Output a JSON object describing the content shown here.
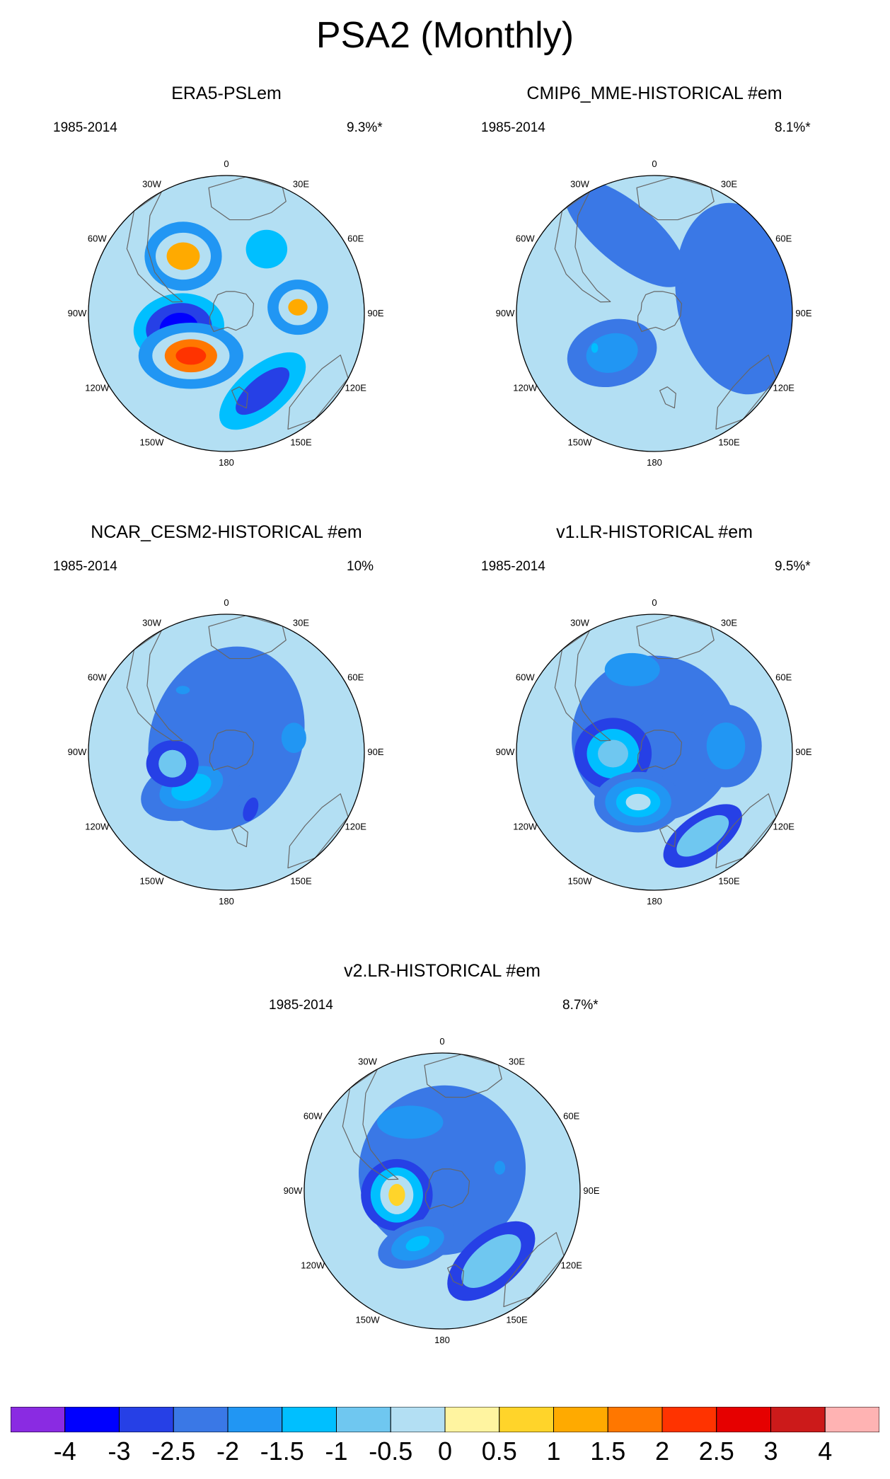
{
  "title": "PSA2 (Monthly)",
  "panels": [
    {
      "title": "ERA5-PSLem",
      "period": "1985-2014",
      "variance": "9.3%*",
      "blobs": [
        {
          "bearing": 323,
          "dist": 0.52,
          "a": 0.28,
          "b": 0.25,
          "rot": 0,
          "lvl": 3
        },
        {
          "bearing": 323,
          "dist": 0.52,
          "a": 0.2,
          "b": 0.17,
          "rot": 0,
          "lvl": 6
        },
        {
          "bearing": 323,
          "dist": 0.52,
          "a": 0.12,
          "b": 0.1,
          "rot": 0,
          "lvl": 8
        },
        {
          "bearing": 85,
          "dist": 0.52,
          "a": 0.22,
          "b": 0.2,
          "rot": 0,
          "lvl": 3
        },
        {
          "bearing": 85,
          "dist": 0.52,
          "a": 0.14,
          "b": 0.13,
          "rot": 0,
          "lvl": 6
        },
        {
          "bearing": 85,
          "dist": 0.52,
          "a": 0.07,
          "b": 0.06,
          "rot": 0,
          "lvl": 8
        },
        {
          "bearing": 253,
          "dist": 0.36,
          "a": 0.33,
          "b": 0.25,
          "rot": -8,
          "lvl": 4
        },
        {
          "bearing": 253,
          "dist": 0.36,
          "a": 0.24,
          "b": 0.18,
          "rot": -8,
          "lvl": 1
        },
        {
          "bearing": 253,
          "dist": 0.36,
          "a": 0.14,
          "b": 0.11,
          "rot": -8,
          "lvl": 0
        },
        {
          "bearing": 220,
          "dist": 0.4,
          "a": 0.38,
          "b": 0.24,
          "rot": 0,
          "lvl": 3
        },
        {
          "bearing": 220,
          "dist": 0.4,
          "a": 0.28,
          "b": 0.17,
          "rot": 0,
          "lvl": 6
        },
        {
          "bearing": 220,
          "dist": 0.4,
          "a": 0.19,
          "b": 0.12,
          "rot": 0,
          "lvl": 9
        },
        {
          "bearing": 220,
          "dist": 0.4,
          "a": 0.11,
          "b": 0.065,
          "rot": 0,
          "lvl": 10
        },
        {
          "bearing": 155,
          "dist": 0.62,
          "a": 0.38,
          "b": 0.18,
          "rot": -40,
          "lvl": 4
        },
        {
          "bearing": 155,
          "dist": 0.62,
          "a": 0.24,
          "b": 0.1,
          "rot": -40,
          "lvl": 1
        },
        {
          "bearing": 32,
          "dist": 0.55,
          "a": 0.15,
          "b": 0.14,
          "rot": 0,
          "lvl": 4
        }
      ]
    },
    {
      "title": "CMIP6_MME-HISTORICAL  #em",
      "period": "1985-2014",
      "variance": "8.1%*",
      "blobs": [
        {
          "bearing": 80,
          "dist": 0.62,
          "a": 0.45,
          "b": 0.7,
          "rot": -10,
          "lvl": 2
        },
        {
          "bearing": 340,
          "dist": 0.62,
          "a": 0.55,
          "b": 0.22,
          "rot": 40,
          "lvl": 2
        },
        {
          "bearing": 227,
          "dist": 0.42,
          "a": 0.33,
          "b": 0.24,
          "rot": -15,
          "lvl": 2
        },
        {
          "bearing": 227,
          "dist": 0.42,
          "a": 0.19,
          "b": 0.14,
          "rot": -15,
          "lvl": 3
        },
        {
          "bearing": 240,
          "dist": 0.5,
          "a": 0.025,
          "b": 0.035,
          "rot": 0,
          "lvl": 4
        }
      ]
    },
    {
      "title": "NCAR_CESM2-HISTORICAL  #em",
      "period": "1985-2014",
      "variance": "10%",
      "blobs": [
        {
          "bearing": 0,
          "dist": 0.1,
          "a": 0.55,
          "b": 0.68,
          "rot": 20,
          "lvl": 2
        },
        {
          "bearing": 225,
          "dist": 0.36,
          "a": 0.38,
          "b": 0.22,
          "rot": -20,
          "lvl": 2
        },
        {
          "bearing": 225,
          "dist": 0.36,
          "a": 0.24,
          "b": 0.14,
          "rot": -20,
          "lvl": 3
        },
        {
          "bearing": 225,
          "dist": 0.36,
          "a": 0.15,
          "b": 0.09,
          "rot": -20,
          "lvl": 4
        },
        {
          "bearing": 258,
          "dist": 0.4,
          "a": 0.19,
          "b": 0.17,
          "rot": 0,
          "lvl": 1
        },
        {
          "bearing": 258,
          "dist": 0.4,
          "a": 0.1,
          "b": 0.1,
          "rot": 0,
          "lvl": 5
        },
        {
          "bearing": 78,
          "dist": 0.5,
          "a": 0.09,
          "b": 0.11,
          "rot": 0,
          "lvl": 3
        },
        {
          "bearing": 157,
          "dist": 0.45,
          "a": 0.05,
          "b": 0.09,
          "rot": 20,
          "lvl": 1
        },
        {
          "bearing": 325,
          "dist": 0.55,
          "a": 0.05,
          "b": 0.03,
          "rot": 0,
          "lvl": 3
        }
      ]
    },
    {
      "title": "v1.LR-HISTORICAL  #em",
      "period": "1985-2014",
      "variance": "9.5%*",
      "blobs": [
        {
          "bearing": 0,
          "dist": 0.1,
          "a": 0.6,
          "b": 0.6,
          "rot": 30,
          "lvl": 2
        },
        {
          "bearing": 85,
          "dist": 0.52,
          "a": 0.26,
          "b": 0.3,
          "rot": 0,
          "lvl": 2
        },
        {
          "bearing": 85,
          "dist": 0.52,
          "a": 0.14,
          "b": 0.17,
          "rot": 0,
          "lvl": 3
        },
        {
          "bearing": 345,
          "dist": 0.62,
          "a": 0.2,
          "b": 0.12,
          "rot": 0,
          "lvl": 3
        },
        {
          "bearing": 268,
          "dist": 0.3,
          "a": 0.28,
          "b": 0.26,
          "rot": 0,
          "lvl": 1
        },
        {
          "bearing": 268,
          "dist": 0.3,
          "a": 0.19,
          "b": 0.18,
          "rot": 0,
          "lvl": 4
        },
        {
          "bearing": 268,
          "dist": 0.3,
          "a": 0.11,
          "b": 0.1,
          "rot": 0,
          "lvl": 5
        },
        {
          "bearing": 198,
          "dist": 0.38,
          "a": 0.32,
          "b": 0.22,
          "rot": 0,
          "lvl": 2
        },
        {
          "bearing": 198,
          "dist": 0.38,
          "a": 0.24,
          "b": 0.17,
          "rot": 0,
          "lvl": 3
        },
        {
          "bearing": 198,
          "dist": 0.38,
          "a": 0.16,
          "b": 0.11,
          "rot": 0,
          "lvl": 4
        },
        {
          "bearing": 198,
          "dist": 0.38,
          "a": 0.09,
          "b": 0.06,
          "rot": 0,
          "lvl": 6
        },
        {
          "bearing": 150,
          "dist": 0.7,
          "a": 0.33,
          "b": 0.16,
          "rot": -35,
          "lvl": 1
        },
        {
          "bearing": 150,
          "dist": 0.7,
          "a": 0.22,
          "b": 0.1,
          "rot": -35,
          "lvl": 5
        }
      ]
    },
    {
      "title": "v2.LR-HISTORICAL  #em",
      "period": "1985-2014",
      "variance": "8.7%*",
      "blobs": [
        {
          "bearing": 0,
          "dist": 0.15,
          "a": 0.6,
          "b": 0.62,
          "rot": 30,
          "lvl": 2
        },
        {
          "bearing": 335,
          "dist": 0.55,
          "a": 0.24,
          "b": 0.12,
          "rot": 0,
          "lvl": 3
        },
        {
          "bearing": 68,
          "dist": 0.45,
          "a": 0.04,
          "b": 0.05,
          "rot": 0,
          "lvl": 3
        },
        {
          "bearing": 265,
          "dist": 0.33,
          "a": 0.26,
          "b": 0.26,
          "rot": 0,
          "lvl": 1
        },
        {
          "bearing": 265,
          "dist": 0.33,
          "a": 0.19,
          "b": 0.2,
          "rot": 0,
          "lvl": 4
        },
        {
          "bearing": 265,
          "dist": 0.33,
          "a": 0.12,
          "b": 0.14,
          "rot": 0,
          "lvl": 6
        },
        {
          "bearing": 265,
          "dist": 0.33,
          "a": 0.06,
          "b": 0.08,
          "rot": 0,
          "lvl": 7
        },
        {
          "bearing": 205,
          "dist": 0.42,
          "a": 0.3,
          "b": 0.16,
          "rot": -20,
          "lvl": 2
        },
        {
          "bearing": 205,
          "dist": 0.42,
          "a": 0.2,
          "b": 0.11,
          "rot": -20,
          "lvl": 3
        },
        {
          "bearing": 205,
          "dist": 0.42,
          "a": 0.09,
          "b": 0.05,
          "rot": -20,
          "lvl": 4
        },
        {
          "bearing": 145,
          "dist": 0.62,
          "a": 0.38,
          "b": 0.2,
          "rot": -40,
          "lvl": 1
        },
        {
          "bearing": 145,
          "dist": 0.62,
          "a": 0.26,
          "b": 0.13,
          "rot": -40,
          "lvl": 5
        }
      ]
    }
  ],
  "longitude_labels": [
    {
      "text": "0",
      "bearing": 0
    },
    {
      "text": "30E",
      "bearing": 30
    },
    {
      "text": "60E",
      "bearing": 60
    },
    {
      "text": "90E",
      "bearing": 90
    },
    {
      "text": "120E",
      "bearing": 120
    },
    {
      "text": "150E",
      "bearing": 150
    },
    {
      "text": "180",
      "bearing": 180
    },
    {
      "text": "150W",
      "bearing": 210
    },
    {
      "text": "120W",
      "bearing": 240
    },
    {
      "text": "90W",
      "bearing": 270
    },
    {
      "text": "60W",
      "bearing": 300
    },
    {
      "text": "30W",
      "bearing": 330
    }
  ],
  "colorbar": {
    "colors": [
      "#8a2be2",
      "#0000ff",
      "#2640e6",
      "#3a78e6",
      "#2196f3",
      "#00bfff",
      "#6fc7f0",
      "#b3dff3",
      "#fff4a0",
      "#ffd42a",
      "#ffaa00",
      "#ff7700",
      "#ff3300",
      "#e60000",
      "#cc1a1a",
      "#ffb3b3"
    ],
    "labels": [
      "-4",
      "-3",
      "-2.5",
      "-2",
      "-1.5",
      "-1",
      "-0.5",
      "0",
      "0.5",
      "1",
      "1.5",
      "2",
      "2.5",
      "3",
      "4"
    ]
  },
  "field_colors": [
    "#0000ff",
    "#2640e6",
    "#3a78e6",
    "#2196f3",
    "#00bfff",
    "#6fc7f0",
    "#b3dff3",
    "#fff4a0",
    "#ffd42a",
    "#ffaa00",
    "#ff7700",
    "#ff3300",
    "#e60000",
    "#cc1a1a",
    "#ffb3b3"
  ]
}
